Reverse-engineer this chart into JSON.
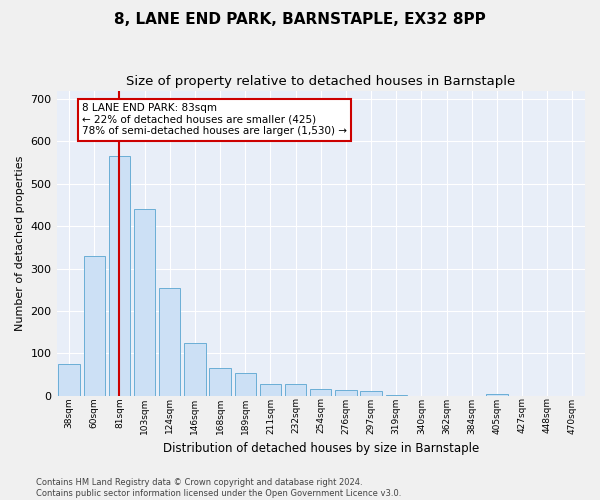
{
  "title": "8, LANE END PARK, BARNSTAPLE, EX32 8PP",
  "subtitle": "Size of property relative to detached houses in Barnstaple",
  "xlabel": "Distribution of detached houses by size in Barnstaple",
  "ylabel": "Number of detached properties",
  "bar_categories": [
    "38sqm",
    "60sqm",
    "81sqm",
    "103sqm",
    "124sqm",
    "146sqm",
    "168sqm",
    "189sqm",
    "211sqm",
    "232sqm",
    "254sqm",
    "276sqm",
    "297sqm",
    "319sqm",
    "340sqm",
    "362sqm",
    "384sqm",
    "405sqm",
    "427sqm",
    "448sqm",
    "470sqm"
  ],
  "bar_values": [
    75,
    330,
    565,
    440,
    255,
    125,
    65,
    55,
    28,
    28,
    16,
    15,
    12,
    3,
    0,
    0,
    0,
    5,
    0,
    0,
    0
  ],
  "bar_color": "#cce0f5",
  "bar_edge_color": "#6aaed6",
  "vline_color": "#cc0000",
  "annotation_text": "8 LANE END PARK: 83sqm\n← 22% of detached houses are smaller (425)\n78% of semi-detached houses are larger (1,530) →",
  "annotation_box_color": "#ffffff",
  "annotation_box_edge": "#cc0000",
  "footer_line1": "Contains HM Land Registry data © Crown copyright and database right 2024.",
  "footer_line2": "Contains public sector information licensed under the Open Government Licence v3.0.",
  "ylim": [
    0,
    720
  ],
  "yticks": [
    0,
    100,
    200,
    300,
    400,
    500,
    600,
    700
  ],
  "background_color": "#e8eef8",
  "fig_background": "#f0f0f0",
  "grid_color": "#ffffff",
  "title_fontsize": 11,
  "subtitle_fontsize": 9.5
}
